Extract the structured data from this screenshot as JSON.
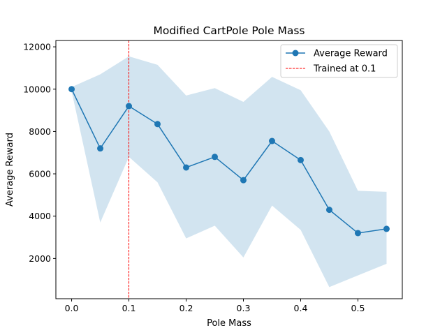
{
  "chart_data": {
    "type": "line",
    "title": "Modified CartPole Pole Mass",
    "xlabel": "Pole Mass",
    "ylabel": "Average Reward",
    "xlim": [
      -0.0275,
      0.5775
    ],
    "ylim": [
      100,
      12300
    ],
    "x_ticks": [
      0.0,
      0.1,
      0.2,
      0.3,
      0.4,
      0.5
    ],
    "x_tick_labels": [
      "0.0",
      "0.1",
      "0.2",
      "0.3",
      "0.4",
      "0.5"
    ],
    "y_ticks": [
      2000,
      4000,
      6000,
      8000,
      10000,
      12000
    ],
    "y_tick_labels": [
      "2000",
      "4000",
      "6000",
      "8000",
      "10000",
      "12000"
    ],
    "x": [
      0.0,
      0.05,
      0.1,
      0.15,
      0.2,
      0.25,
      0.3,
      0.35,
      0.4,
      0.45,
      0.5,
      0.55
    ],
    "series": [
      {
        "name": "Average Reward",
        "values": [
          10000,
          7200,
          9200,
          8350,
          6300,
          6800,
          5700,
          7550,
          6650,
          4300,
          3200,
          3400
        ],
        "lower": [
          9900,
          3700,
          6800,
          5600,
          2950,
          3550,
          2050,
          4500,
          3350,
          650,
          1200,
          1750
        ],
        "upper": [
          10100,
          10700,
          11550,
          11150,
          9700,
          10050,
          9400,
          10580,
          9950,
          8000,
          5200,
          5150
        ],
        "color": "#1f77b4",
        "band_color": "#1f77b4"
      }
    ],
    "reference_line": {
      "name": "Trained at 0.1",
      "x": 0.1,
      "color": "#ff0000",
      "style": "dashed"
    },
    "legend": {
      "position": "top-right",
      "entries": [
        "Average Reward",
        "Trained at 0.1"
      ]
    },
    "grid": false
  }
}
